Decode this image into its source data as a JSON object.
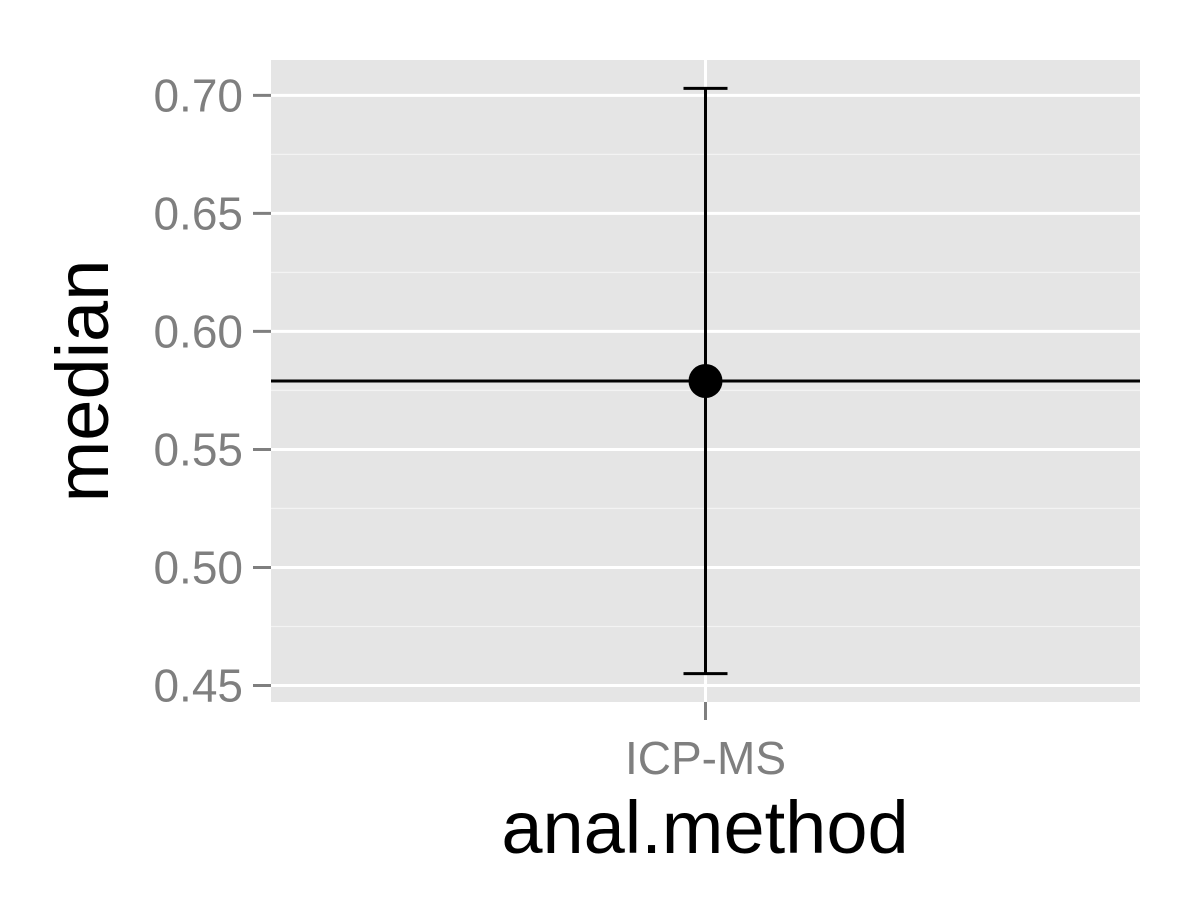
{
  "chart_data": {
    "type": "scatter",
    "title": "",
    "xlabel": "anal.method",
    "ylabel": "median",
    "categories": [
      "ICP-MS"
    ],
    "points": [
      {
        "x": "ICP-MS",
        "y": 0.579,
        "ymin": 0.455,
        "ymax": 0.703
      }
    ],
    "reference_line": {
      "orientation": "horizontal",
      "y": 0.579
    },
    "yticks": [
      0.45,
      0.5,
      0.55,
      0.6,
      0.65,
      0.7
    ],
    "ytick_labels": [
      "0.45",
      "0.50",
      "0.55",
      "0.60",
      "0.65",
      "0.70"
    ],
    "ylim": [
      0.443,
      0.715
    ],
    "grid": true,
    "legend": "none",
    "colors": {
      "panel_background": "#e5e5e5",
      "grid": "#ffffff",
      "tick_label": "#7f7f7f",
      "tick_mark": "#7f7f7f",
      "mark": "#000000"
    }
  }
}
